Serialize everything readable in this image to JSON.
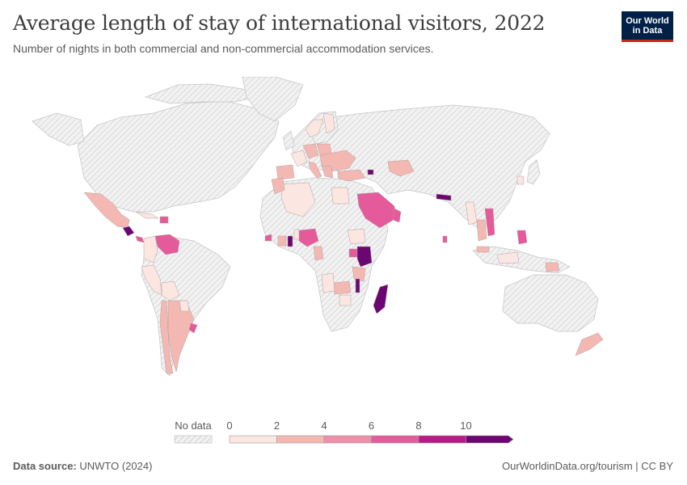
{
  "header": {
    "title": "Average length of stay of international visitors, 2022",
    "subtitle": "Number of nights in both commercial and non-commercial accommodation services."
  },
  "logo": {
    "line1": "Our World",
    "line2": "in Data"
  },
  "legend": {
    "no_data_label": "No data",
    "ticks": [
      "0",
      "2",
      "4",
      "6",
      "8",
      "10"
    ],
    "bins": [
      {
        "from": 0,
        "to": 2,
        "color": "#fbe6e1"
      },
      {
        "from": 2,
        "to": 4,
        "color": "#f4b8b2"
      },
      {
        "from": 4,
        "to": 6,
        "color": "#ee90a8"
      },
      {
        "from": 6,
        "to": 8,
        "color": "#e55a9a"
      },
      {
        "from": 8,
        "to": 10,
        "color": "#b91a86"
      },
      {
        "from": 10,
        "to": null,
        "color": "#6c0772"
      }
    ]
  },
  "footer": {
    "source_label": "Data source:",
    "source_value": "UNWTO (2024)",
    "right": "OurWorldinData.org/tourism | CC BY"
  },
  "colors": {
    "no_data_fill": "#e9e9e9",
    "border": "#c9c9c9",
    "bin1": "#fbe6e1",
    "bin2": "#f4b8b2",
    "bin3": "#ee90a8",
    "bin4": "#e55a9a",
    "bin5": "#b91a86",
    "bin6": "#6c0772"
  }
}
